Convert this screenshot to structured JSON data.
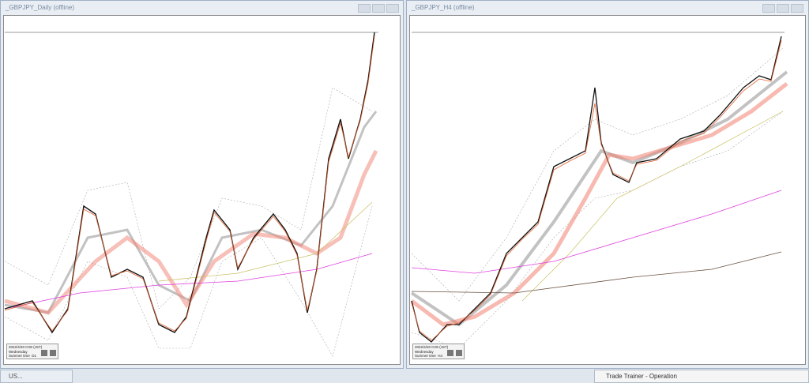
{
  "windows": [
    {
      "title": "_GBPJPY_Daily (offline)",
      "info": {
        "date": "2022/4/20 0:00 (JST)",
        "weekday": "Wednesday",
        "season": "Summer time",
        "timeframe": "D1"
      }
    },
    {
      "title": "_GBPJPY_H4 (offline)",
      "info": {
        "date": "2022/4/20 0:00 (JST)",
        "weekday": "Wednesday",
        "season": "Summer time",
        "timeframe": "H4"
      }
    }
  ],
  "taskbar": {
    "items": [
      "US..."
    ],
    "window_title": "Trade Trainer - Operation"
  }
}
